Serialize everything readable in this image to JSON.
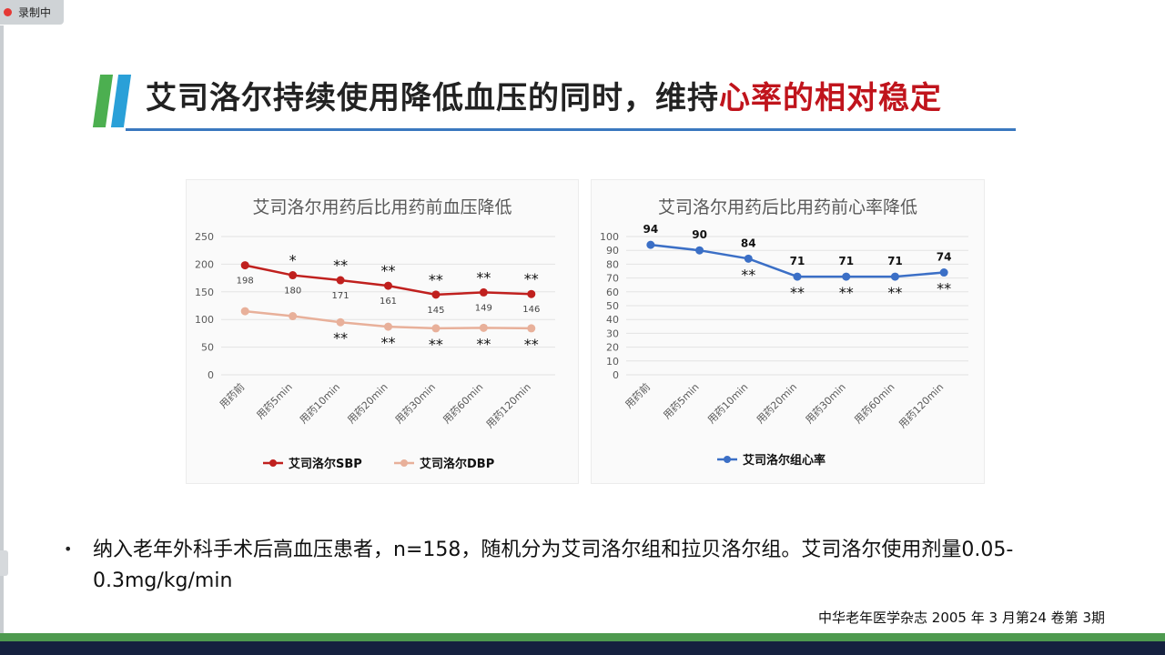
{
  "recording": {
    "label": "录制中",
    "color": "#e53935"
  },
  "title": {
    "main": "艾司洛尔持续使用降低血压的同时，维持",
    "highlight": "心率的相对稳定",
    "highlight_color": "#c0141c"
  },
  "bullet": "纳入老年外科手术后高血压患者，n=158，随机分为艾司洛尔组和拉贝洛尔组。艾司洛尔使用剂量0.05-0.3mg/kg/min",
  "citation": "中华老年医学杂志 2005 年 3 月第24 卷第 3期",
  "chart_data": [
    {
      "type": "line",
      "title": "艾司洛尔用药后比用药前血压降低",
      "categories": [
        "用药前",
        "用药5min",
        "用药10min",
        "用药20min",
        "用药30min",
        "用药60min",
        "用药120min"
      ],
      "ylim": [
        0,
        250
      ],
      "yticks": [
        0,
        50,
        100,
        150,
        200,
        250
      ],
      "grid": true,
      "legend": "bottom",
      "series": [
        {
          "name": "艾司洛尔SBP",
          "color": "#c0201e",
          "values": [
            198,
            180,
            171,
            161,
            145,
            149,
            146
          ],
          "labels": [
            "198",
            "180",
            "171",
            "161",
            "145",
            "149",
            "146"
          ],
          "significance": [
            "",
            "*",
            "**",
            "**",
            "**",
            "**",
            "**"
          ]
        },
        {
          "name": "艾司洛尔DBP",
          "color": "#e8b09a",
          "values": [
            115,
            106,
            95,
            87,
            84,
            85,
            84
          ],
          "significance": [
            "",
            "",
            "**",
            "**",
            "**",
            "**",
            "**"
          ]
        }
      ]
    },
    {
      "type": "line",
      "title": "艾司洛尔用药后比用药前心率降低",
      "categories": [
        "用药前",
        "用药5min",
        "用药10min",
        "用药20min",
        "用药30min",
        "用药60min",
        "用药120min"
      ],
      "ylim": [
        0,
        100
      ],
      "yticks": [
        0,
        10,
        20,
        30,
        40,
        50,
        60,
        70,
        80,
        90,
        100
      ],
      "grid": true,
      "legend": "bottom",
      "series": [
        {
          "name": "艾司洛尔组心率",
          "color": "#3b6fc6",
          "values": [
            94,
            90,
            84,
            71,
            71,
            71,
            74
          ],
          "labels": [
            "94",
            "90",
            "84",
            "71",
            "71",
            "71",
            "74"
          ],
          "significance": [
            "",
            "",
            "**",
            "**",
            "**",
            "**",
            "**"
          ]
        }
      ]
    }
  ]
}
